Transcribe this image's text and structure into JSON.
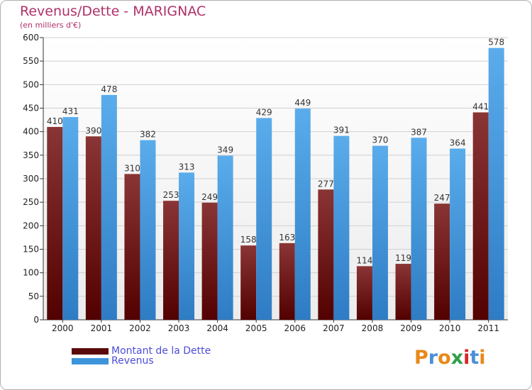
{
  "title": "Revenus/Dette - MARIGNAC",
  "subtitle": "(en milliers d'€)",
  "chart_data": {
    "type": "bar",
    "categories": [
      "2000",
      "2001",
      "2002",
      "2003",
      "2004",
      "2005",
      "2006",
      "2007",
      "2008",
      "2009",
      "2010",
      "2011"
    ],
    "series": [
      {
        "name": "Montant de la Dette",
        "color": "#7a1a1a",
        "values": [
          410,
          390,
          310,
          253,
          249,
          158,
          163,
          277,
          114,
          119,
          247,
          441
        ]
      },
      {
        "name": "Revenus",
        "color": "#3d95dc",
        "values": [
          431,
          478,
          382,
          313,
          349,
          429,
          449,
          391,
          370,
          387,
          364,
          578
        ]
      }
    ],
    "yticks": [
      0,
      50,
      100,
      150,
      200,
      250,
      300,
      350,
      400,
      450,
      500,
      550,
      600
    ],
    "ylim": [
      0,
      600
    ],
    "grid": true,
    "legend_position": "bottom-left"
  },
  "legend": [
    {
      "label": "Montant de la Dette",
      "color": "#5a0a0a"
    },
    {
      "label": "Revenus",
      "color": "#3d95dc"
    }
  ],
  "logo": {
    "text": "Proxiti",
    "letter_colors": [
      "#e8891a",
      "#4a8fd8",
      "#e8891a",
      "#2e9f4a",
      "#d8242a",
      "#4a8fd8",
      "#e8891a"
    ]
  }
}
